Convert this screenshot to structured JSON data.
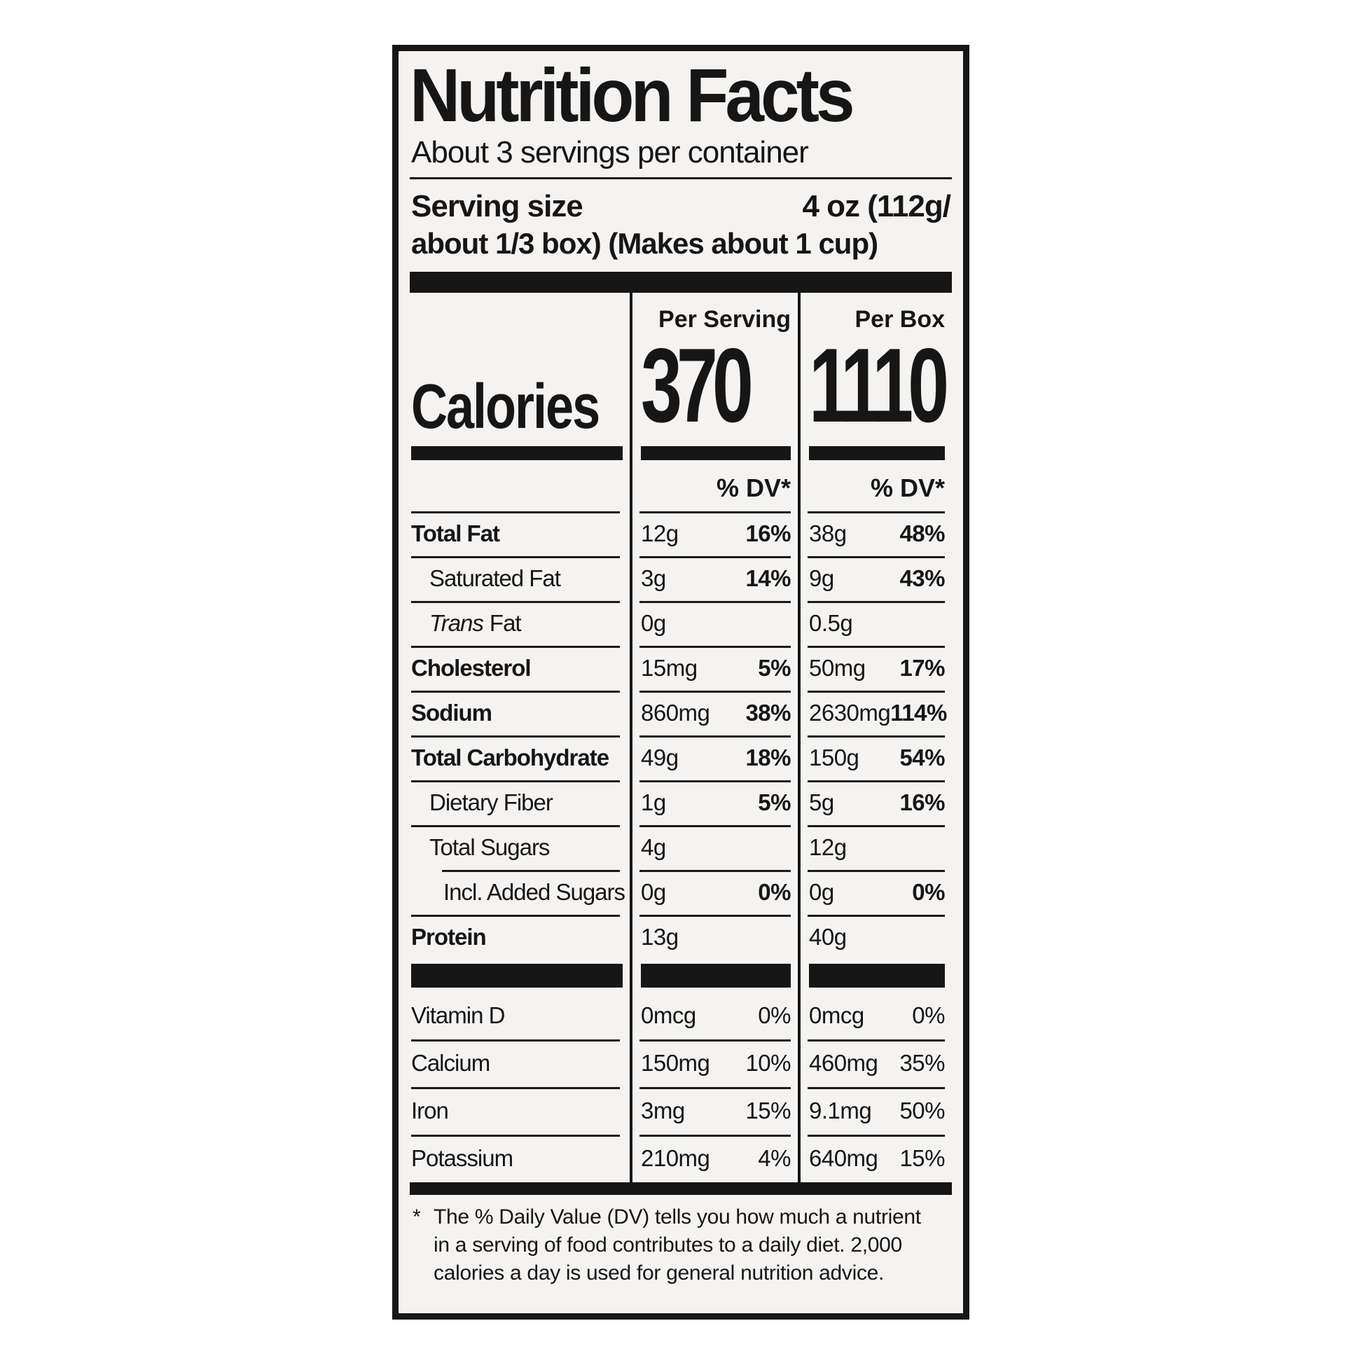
{
  "colors": {
    "paper": "#ffffff",
    "label_bg": "#f4f3f1",
    "ink": "#161616"
  },
  "label": {
    "title": "Nutrition Facts",
    "servings_per_container": "About 3 servings per container",
    "serving_size": {
      "label": "Serving size",
      "value_line1": "4 oz (112g/",
      "value_line2": "about 1/3 box) (Makes about 1 cup)"
    },
    "calories": {
      "label": "Calories",
      "per_serving_header": "Per Serving",
      "per_box_header": "Per Box",
      "per_serving_value": "370",
      "per_box_value": "1110",
      "dv_header": "% DV*"
    },
    "nutrients": [
      {
        "name": "Total Fat",
        "serving": {
          "amount": "12g",
          "dv": "16%"
        },
        "box": {
          "amount": "38g",
          "dv": "48%"
        }
      },
      {
        "name": "Saturated Fat",
        "serving": {
          "amount": "3g",
          "dv": "14%"
        },
        "box": {
          "amount": "9g",
          "dv": "43%"
        }
      },
      {
        "name_italic": "Trans",
        "name": "Fat",
        "serving": {
          "amount": "0g",
          "dv": ""
        },
        "box": {
          "amount": "0.5g",
          "dv": ""
        }
      },
      {
        "name": "Cholesterol",
        "serving": {
          "amount": "15mg",
          "dv": "5%"
        },
        "box": {
          "amount": "50mg",
          "dv": "17%"
        }
      },
      {
        "name": "Sodium",
        "serving": {
          "amount": "860mg",
          "dv": "38%"
        },
        "box": {
          "amount": "2630mg",
          "dv": "114%"
        }
      },
      {
        "name": "Total Carbohydrate",
        "serving": {
          "amount": "49g",
          "dv": "18%"
        },
        "box": {
          "amount": "150g",
          "dv": "54%"
        }
      },
      {
        "name": "Dietary Fiber",
        "serving": {
          "amount": "1g",
          "dv": "5%"
        },
        "box": {
          "amount": "5g",
          "dv": "16%"
        }
      },
      {
        "name": "Total Sugars",
        "serving": {
          "amount": "4g",
          "dv": ""
        },
        "box": {
          "amount": "12g",
          "dv": ""
        }
      },
      {
        "name": "Incl. Added Sugars",
        "serving": {
          "amount": "0g",
          "dv": "0%"
        },
        "box": {
          "amount": "0g",
          "dv": "0%"
        }
      },
      {
        "name": "Protein",
        "serving": {
          "amount": "13g",
          "dv": ""
        },
        "box": {
          "amount": "40g",
          "dv": ""
        }
      }
    ],
    "vitamins": [
      {
        "name": "Vitamin D",
        "serving": {
          "amount": "0mcg",
          "dv": "0%"
        },
        "box": {
          "amount": "0mcg",
          "dv": "0%"
        }
      },
      {
        "name": "Calcium",
        "serving": {
          "amount": "150mg",
          "dv": "10%"
        },
        "box": {
          "amount": "460mg",
          "dv": "35%"
        }
      },
      {
        "name": "Iron",
        "serving": {
          "amount": "3mg",
          "dv": "15%"
        },
        "box": {
          "amount": "9.1mg",
          "dv": "50%"
        }
      },
      {
        "name": "Potassium",
        "serving": {
          "amount": "210mg",
          "dv": "4%"
        },
        "box": {
          "amount": "640mg",
          "dv": "15%"
        }
      }
    ],
    "footnote": {
      "star": "*",
      "lines": [
        "The % Daily Value (DV) tells you how much a nutrient",
        "in a serving of food contributes to a daily diet. 2,000",
        "calories a day is used for general nutrition advice."
      ]
    }
  }
}
